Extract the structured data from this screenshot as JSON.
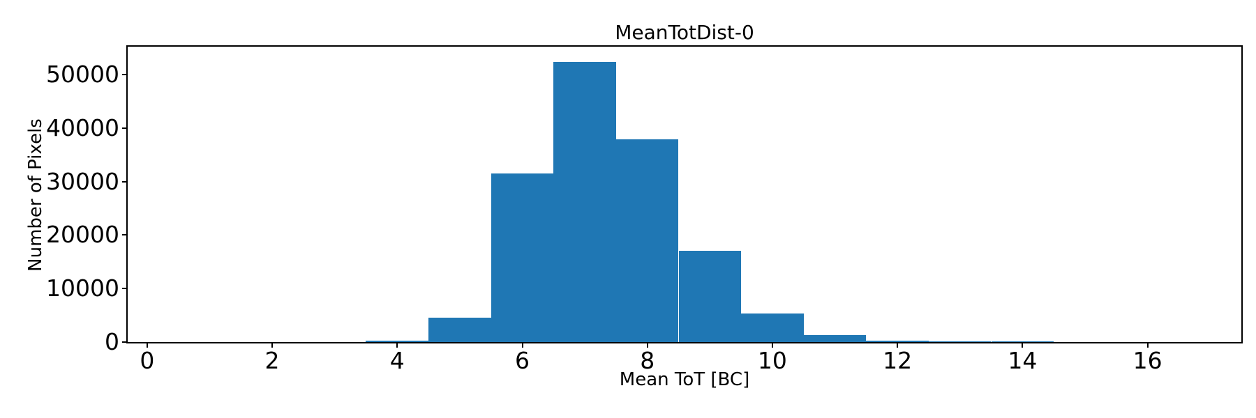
{
  "chart_data": {
    "type": "bar",
    "subtype": "histogram",
    "title": "MeanTotDist-0",
    "xlabel": "Mean ToT [BC]",
    "ylabel": "Number of Pixels",
    "bar_color": "#1f77b4",
    "text_color": "#000000",
    "bin_edges": [
      3.5,
      4.5,
      5.5,
      6.5,
      7.5,
      8.5,
      9.5,
      10.5,
      11.5,
      12.5,
      13.5,
      14.5
    ],
    "counts": [
      250,
      4500,
      31500,
      52400,
      37900,
      17000,
      5300,
      1350,
      300,
      130,
      110
    ],
    "xticks": [
      0,
      2,
      4,
      6,
      8,
      10,
      12,
      14,
      16
    ],
    "yticks": [
      0,
      10000,
      20000,
      30000,
      40000,
      50000
    ],
    "xlim": [
      -0.31,
      17.5
    ],
    "ylim": [
      0,
      55195
    ],
    "grid": false,
    "legend_position": "none"
  }
}
